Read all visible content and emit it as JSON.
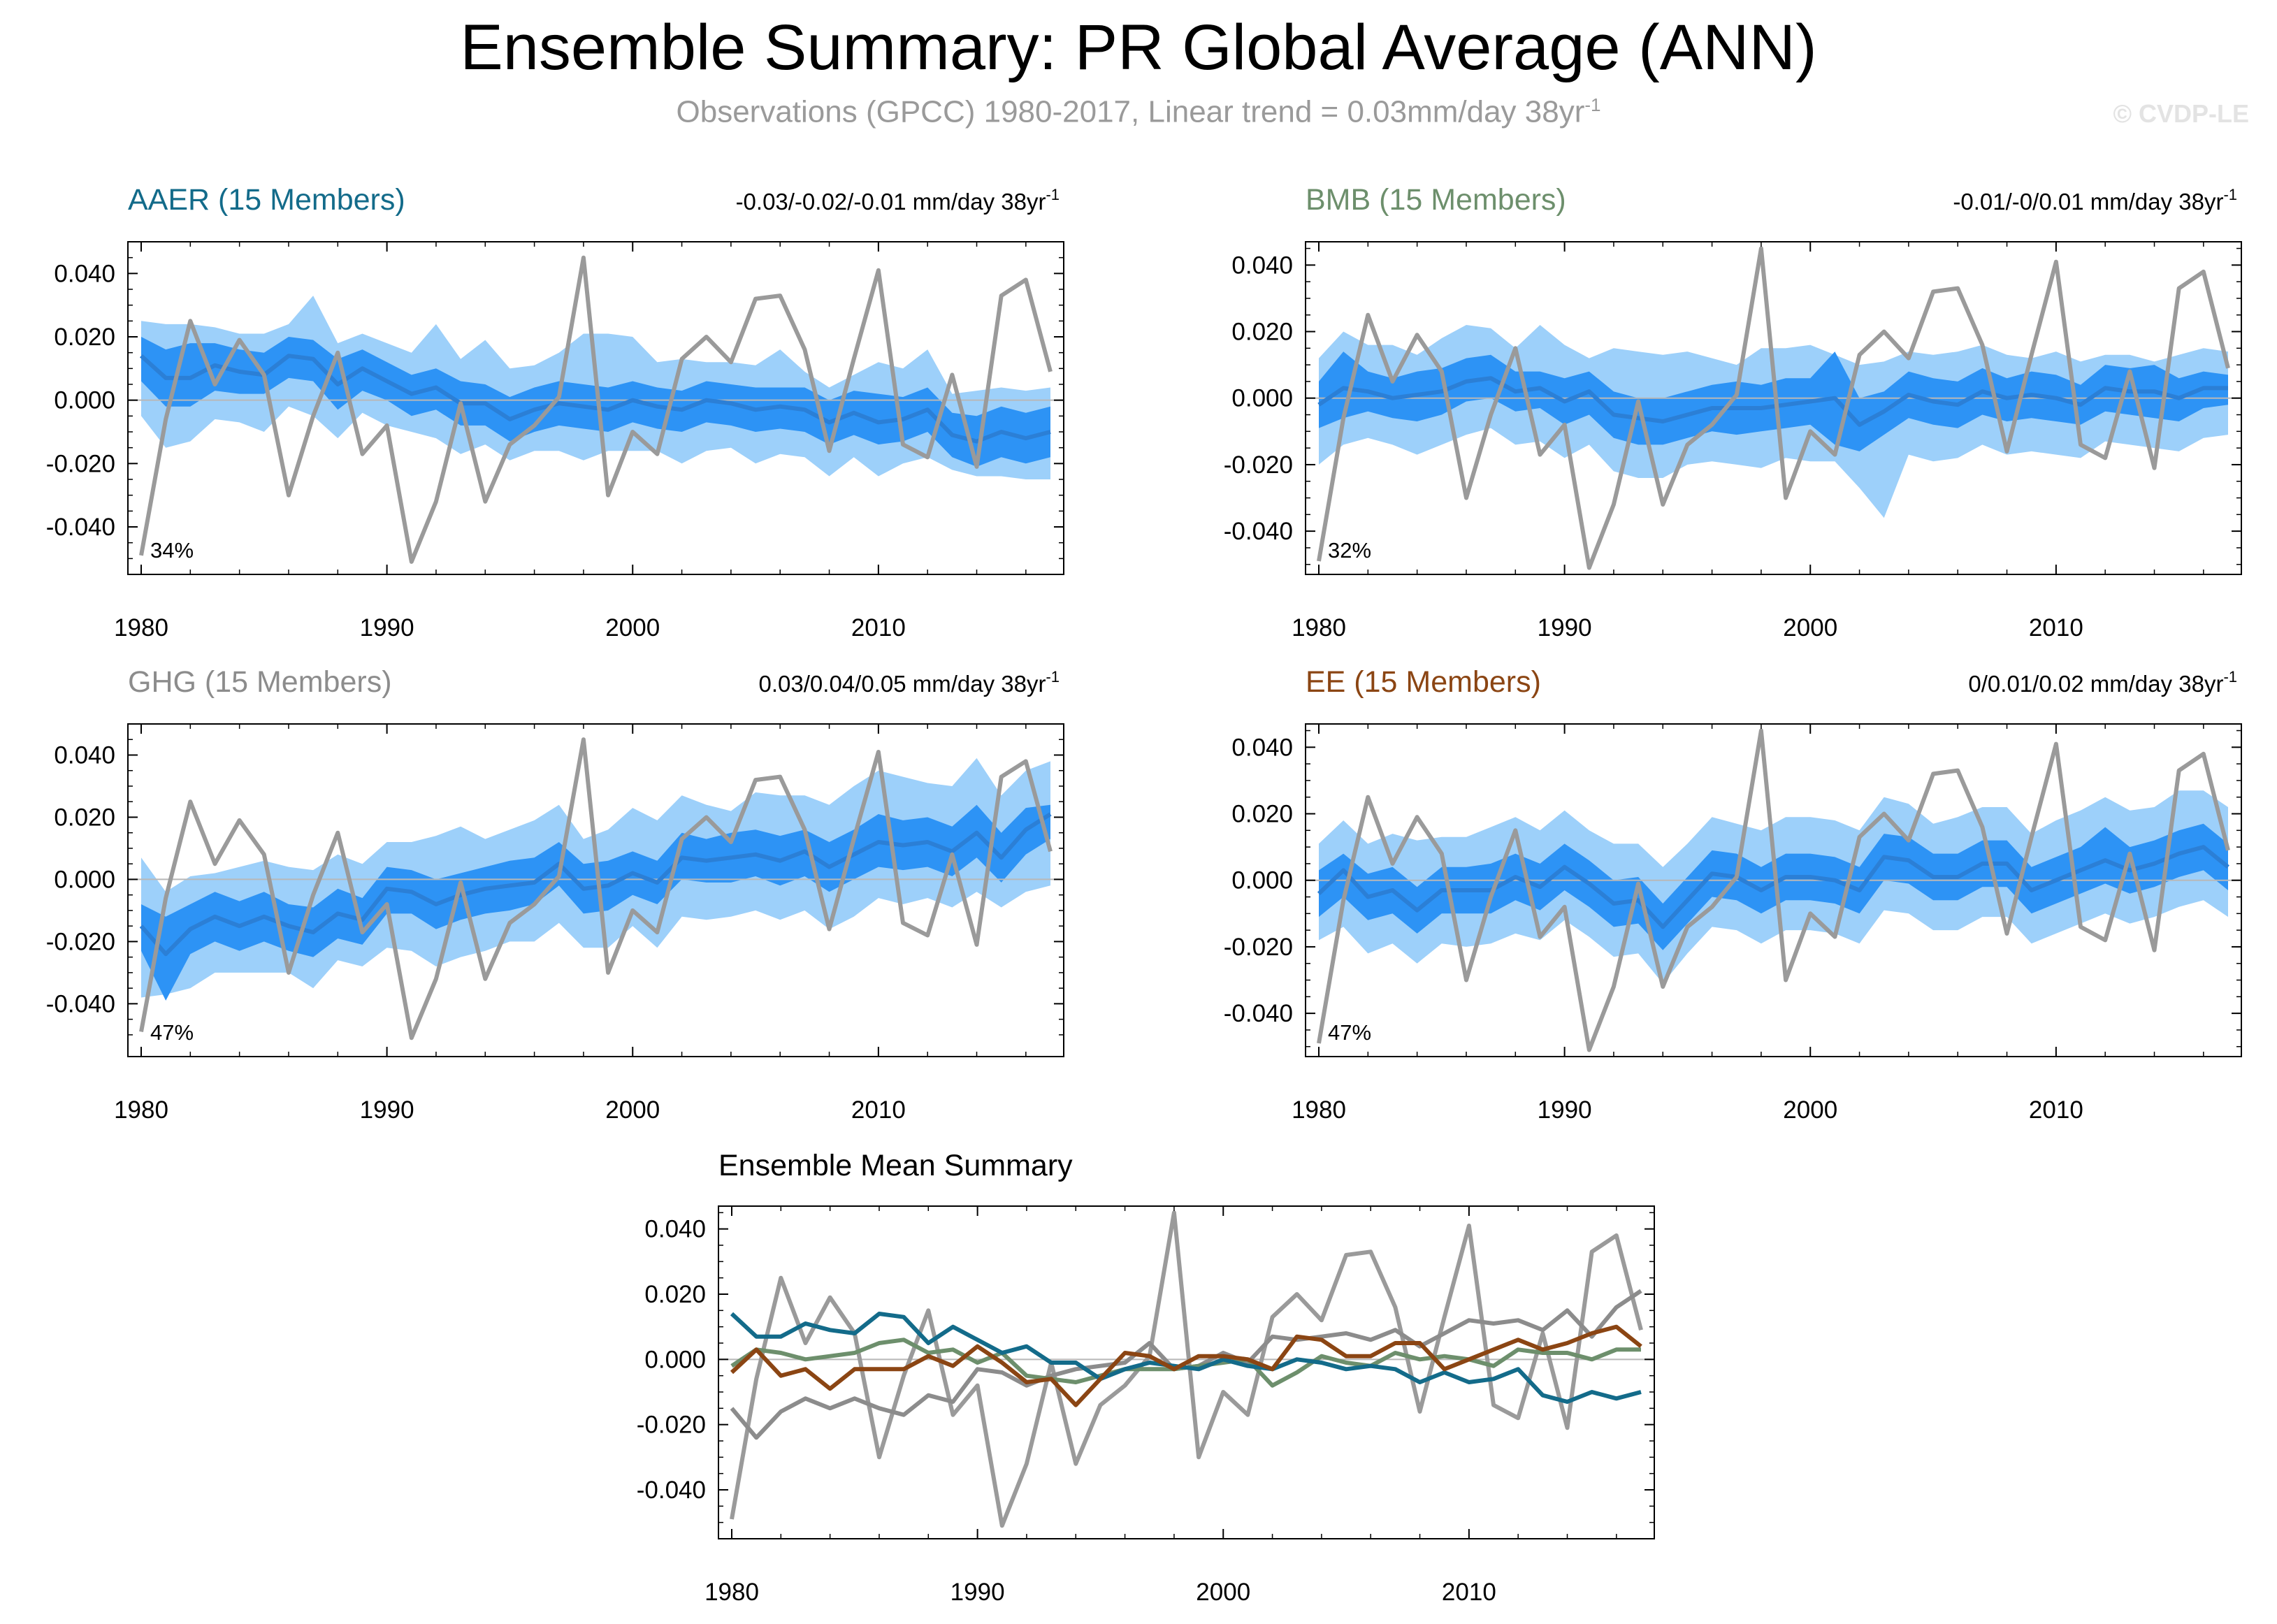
{
  "title": "Ensemble Summary: PR Global Average (ANN)",
  "subtitle": "Observations (GPCC) 1980-2017, Linear trend = 0.03mm/day 38yr",
  "subtitle_exp": "-1",
  "credit": "© CVDP-LE",
  "colors": {
    "aaer": "#136b8a",
    "bmb": "#6d8f6c",
    "ghg": "#8c8c8c",
    "ee": "#8b4513",
    "obs": "#9a9a9a",
    "outer_band": "#9dd0fa",
    "inner_band": "#2d93f5",
    "ens_mean": "#2b7fd6"
  },
  "chart_data": [
    {
      "type": "line",
      "name": "AAER",
      "title": "AAER (15 Members)",
      "title_color": "#136b8a",
      "trend": "-0.03/-0.02/-0.01 mm/day 38yr",
      "trend_exp": "-1",
      "percent": "34%",
      "xlim": [
        1980,
        2017
      ],
      "ylim": [
        -0.055,
        0.05
      ],
      "xticks": [
        "1980",
        "1990",
        "2000",
        "2010"
      ],
      "yticks": [
        "0.040",
        "0.020",
        "0.000",
        "-0.020",
        "-0.040"
      ],
      "x": [
        1980,
        1981,
        1982,
        1983,
        1984,
        1985,
        1986,
        1987,
        1988,
        1989,
        1990,
        1991,
        1992,
        1993,
        1994,
        1995,
        1996,
        1997,
        1998,
        1999,
        2000,
        2001,
        2002,
        2003,
        2004,
        2005,
        2006,
        2007,
        2008,
        2009,
        2010,
        2011,
        2012,
        2013,
        2014,
        2015,
        2016,
        2017
      ],
      "mean": [
        0.014,
        0.007,
        0.007,
        0.011,
        0.009,
        0.008,
        0.014,
        0.013,
        0.005,
        0.01,
        0.006,
        0.002,
        0.004,
        -0.001,
        -0.001,
        -0.006,
        -0.003,
        -0.001,
        -0.002,
        -0.003,
        0.0,
        -0.002,
        -0.003,
        0.0,
        -0.001,
        -0.003,
        -0.002,
        -0.003,
        -0.007,
        -0.004,
        -0.007,
        -0.006,
        -0.003,
        -0.011,
        -0.013,
        -0.01,
        -0.012,
        -0.01
      ],
      "inner_upper": [
        0.02,
        0.016,
        0.018,
        0.018,
        0.016,
        0.015,
        0.02,
        0.019,
        0.013,
        0.016,
        0.012,
        0.008,
        0.01,
        0.006,
        0.005,
        0.001,
        0.004,
        0.006,
        0.005,
        0.004,
        0.006,
        0.004,
        0.003,
        0.006,
        0.005,
        0.004,
        0.004,
        0.004,
        0.0,
        0.003,
        0.002,
        0.001,
        0.004,
        -0.004,
        -0.005,
        -0.002,
        -0.004,
        -0.002
      ],
      "inner_lower": [
        0.006,
        -0.002,
        -0.002,
        0.003,
        0.002,
        0.002,
        0.007,
        0.006,
        -0.003,
        0.003,
        0.0,
        -0.005,
        -0.003,
        -0.008,
        -0.008,
        -0.013,
        -0.01,
        -0.008,
        -0.009,
        -0.01,
        -0.007,
        -0.009,
        -0.01,
        -0.007,
        -0.008,
        -0.01,
        -0.009,
        -0.01,
        -0.014,
        -0.011,
        -0.014,
        -0.013,
        -0.01,
        -0.018,
        -0.021,
        -0.018,
        -0.02,
        -0.018
      ],
      "outer_upper": [
        0.025,
        0.024,
        0.024,
        0.023,
        0.021,
        0.021,
        0.024,
        0.033,
        0.018,
        0.021,
        0.018,
        0.015,
        0.024,
        0.013,
        0.019,
        0.01,
        0.011,
        0.015,
        0.021,
        0.021,
        0.02,
        0.012,
        0.013,
        0.012,
        0.012,
        0.011,
        0.016,
        0.009,
        0.004,
        0.008,
        0.012,
        0.01,
        0.016,
        0.002,
        0.003,
        0.004,
        0.003,
        0.004
      ],
      "outer_lower": [
        -0.005,
        -0.015,
        -0.013,
        -0.006,
        -0.007,
        -0.01,
        -0.002,
        -0.005,
        -0.012,
        -0.004,
        -0.008,
        -0.01,
        -0.012,
        -0.017,
        -0.014,
        -0.019,
        -0.016,
        -0.016,
        -0.019,
        -0.016,
        -0.016,
        -0.016,
        -0.02,
        -0.016,
        -0.015,
        -0.02,
        -0.017,
        -0.018,
        -0.024,
        -0.018,
        -0.024,
        -0.02,
        -0.018,
        -0.022,
        -0.024,
        -0.024,
        -0.025,
        -0.025
      ],
      "obs": [
        -0.049,
        -0.006,
        0.025,
        0.005,
        0.019,
        0.008,
        -0.03,
        -0.005,
        0.015,
        -0.017,
        -0.008,
        -0.051,
        -0.032,
        -0.001,
        -0.032,
        -0.014,
        -0.008,
        0.001,
        0.045,
        -0.03,
        -0.01,
        -0.017,
        0.013,
        0.02,
        0.012,
        0.032,
        0.033,
        0.016,
        -0.016,
        0.013,
        0.041,
        -0.014,
        -0.018,
        0.008,
        -0.021,
        0.033,
        0.038,
        0.009
      ]
    },
    {
      "type": "line",
      "name": "BMB",
      "title": "BMB (15 Members)",
      "title_color": "#6d8f6c",
      "trend": "-0.01/-0/0.01 mm/day 38yr",
      "trend_exp": "-1",
      "percent": "32%",
      "xlim": [
        1980,
        2017
      ],
      "ylim": [
        -0.053,
        0.047
      ],
      "xticks": [
        "1980",
        "1990",
        "2000",
        "2010"
      ],
      "yticks": [
        "0.040",
        "0.020",
        "0.000",
        "-0.020",
        "-0.040"
      ],
      "x": [
        1980,
        1981,
        1982,
        1983,
        1984,
        1985,
        1986,
        1987,
        1988,
        1989,
        1990,
        1991,
        1992,
        1993,
        1994,
        1995,
        1996,
        1997,
        1998,
        1999,
        2000,
        2001,
        2002,
        2003,
        2004,
        2005,
        2006,
        2007,
        2008,
        2009,
        2010,
        2011,
        2012,
        2013,
        2014,
        2015,
        2016,
        2017
      ],
      "mean": [
        -0.002,
        0.003,
        0.002,
        0.0,
        0.001,
        0.002,
        0.005,
        0.006,
        0.002,
        0.003,
        -0.001,
        0.002,
        -0.005,
        -0.006,
        -0.007,
        -0.005,
        -0.003,
        -0.003,
        -0.003,
        -0.002,
        -0.001,
        0.0,
        -0.008,
        -0.004,
        0.001,
        -0.001,
        -0.002,
        0.002,
        0.0,
        0.001,
        0.0,
        -0.002,
        0.003,
        0.002,
        0.002,
        0.0,
        0.003,
        0.003
      ],
      "inner_upper": [
        0.005,
        0.014,
        0.008,
        0.006,
        0.008,
        0.009,
        0.012,
        0.013,
        0.008,
        0.008,
        0.006,
        0.008,
        0.002,
        0.0,
        0.0,
        0.002,
        0.004,
        0.005,
        0.004,
        0.006,
        0.006,
        0.014,
        0.0,
        0.002,
        0.008,
        0.006,
        0.005,
        0.009,
        0.006,
        0.008,
        0.007,
        0.004,
        0.01,
        0.009,
        0.01,
        0.006,
        0.008,
        0.007
      ],
      "inner_lower": [
        -0.009,
        -0.006,
        -0.004,
        -0.006,
        -0.007,
        -0.005,
        -0.001,
        0.0,
        -0.004,
        -0.003,
        -0.008,
        -0.005,
        -0.012,
        -0.014,
        -0.014,
        -0.012,
        -0.01,
        -0.011,
        -0.01,
        -0.009,
        -0.008,
        -0.014,
        -0.016,
        -0.011,
        -0.006,
        -0.008,
        -0.009,
        -0.005,
        -0.007,
        -0.006,
        -0.007,
        -0.008,
        -0.004,
        -0.005,
        -0.006,
        -0.007,
        -0.003,
        -0.002
      ],
      "outer_upper": [
        0.012,
        0.02,
        0.016,
        0.016,
        0.013,
        0.018,
        0.022,
        0.021,
        0.015,
        0.022,
        0.016,
        0.012,
        0.015,
        0.014,
        0.013,
        0.014,
        0.012,
        0.01,
        0.015,
        0.015,
        0.016,
        0.013,
        0.01,
        0.011,
        0.014,
        0.013,
        0.014,
        0.016,
        0.013,
        0.012,
        0.014,
        0.011,
        0.013,
        0.013,
        0.011,
        0.013,
        0.015,
        0.014
      ],
      "outer_lower": [
        -0.02,
        -0.014,
        -0.012,
        -0.014,
        -0.017,
        -0.014,
        -0.011,
        -0.009,
        -0.014,
        -0.013,
        -0.018,
        -0.014,
        -0.022,
        -0.024,
        -0.024,
        -0.02,
        -0.019,
        -0.02,
        -0.021,
        -0.018,
        -0.019,
        -0.019,
        -0.027,
        -0.036,
        -0.017,
        -0.019,
        -0.018,
        -0.014,
        -0.017,
        -0.016,
        -0.017,
        -0.018,
        -0.013,
        -0.014,
        -0.015,
        -0.016,
        -0.012,
        -0.011
      ],
      "obs": [
        -0.049,
        -0.006,
        0.025,
        0.005,
        0.019,
        0.008,
        -0.03,
        -0.005,
        0.015,
        -0.017,
        -0.008,
        -0.051,
        -0.032,
        -0.001,
        -0.032,
        -0.014,
        -0.008,
        0.001,
        0.045,
        -0.03,
        -0.01,
        -0.017,
        0.013,
        0.02,
        0.012,
        0.032,
        0.033,
        0.016,
        -0.016,
        0.013,
        0.041,
        -0.014,
        -0.018,
        0.008,
        -0.021,
        0.033,
        0.038,
        0.009
      ]
    },
    {
      "type": "line",
      "name": "GHG",
      "title": "GHG (15 Members)",
      "title_color": "#8c8c8c",
      "trend": "0.03/0.04/0.05 mm/day 38yr",
      "trend_exp": "-1",
      "percent": "47%",
      "xlim": [
        1980,
        2017
      ],
      "ylim": [
        -0.057,
        0.05
      ],
      "xticks": [
        "1980",
        "1990",
        "2000",
        "2010"
      ],
      "yticks": [
        "0.040",
        "0.020",
        "0.000",
        "-0.020",
        "-0.040"
      ],
      "x": [
        1980,
        1981,
        1982,
        1983,
        1984,
        1985,
        1986,
        1987,
        1988,
        1989,
        1990,
        1991,
        1992,
        1993,
        1994,
        1995,
        1996,
        1997,
        1998,
        1999,
        2000,
        2001,
        2002,
        2003,
        2004,
        2005,
        2006,
        2007,
        2008,
        2009,
        2010,
        2011,
        2012,
        2013,
        2014,
        2015,
        2016,
        2017
      ],
      "mean": [
        -0.015,
        -0.024,
        -0.016,
        -0.012,
        -0.015,
        -0.012,
        -0.015,
        -0.017,
        -0.011,
        -0.013,
        -0.003,
        -0.004,
        -0.008,
        -0.005,
        -0.003,
        -0.002,
        -0.001,
        0.005,
        -0.003,
        -0.002,
        0.002,
        -0.001,
        0.007,
        0.006,
        0.007,
        0.008,
        0.006,
        0.009,
        0.004,
        0.008,
        0.012,
        0.011,
        0.012,
        0.009,
        0.015,
        0.007,
        0.016,
        0.021
      ],
      "inner_upper": [
        -0.008,
        -0.012,
        -0.008,
        -0.004,
        -0.007,
        -0.004,
        -0.008,
        -0.009,
        -0.003,
        -0.006,
        0.004,
        0.003,
        0.0,
        0.002,
        0.004,
        0.006,
        0.007,
        0.012,
        0.005,
        0.006,
        0.009,
        0.006,
        0.015,
        0.013,
        0.015,
        0.016,
        0.014,
        0.016,
        0.012,
        0.016,
        0.021,
        0.019,
        0.02,
        0.017,
        0.024,
        0.015,
        0.023,
        0.024
      ],
      "inner_lower": [
        -0.023,
        -0.039,
        -0.024,
        -0.02,
        -0.023,
        -0.02,
        -0.023,
        -0.025,
        -0.019,
        -0.021,
        -0.011,
        -0.011,
        -0.016,
        -0.013,
        -0.011,
        -0.01,
        -0.008,
        -0.002,
        -0.011,
        -0.01,
        -0.005,
        -0.008,
        0.0,
        -0.001,
        -0.001,
        0.001,
        -0.002,
        0.001,
        -0.004,
        0.0,
        0.004,
        0.003,
        0.004,
        0.001,
        0.007,
        -0.001,
        0.008,
        0.013
      ],
      "outer_upper": [
        0.007,
        -0.004,
        0.001,
        0.002,
        0.004,
        0.006,
        0.004,
        0.003,
        0.008,
        0.005,
        0.012,
        0.012,
        0.014,
        0.017,
        0.013,
        0.016,
        0.019,
        0.024,
        0.013,
        0.016,
        0.023,
        0.019,
        0.027,
        0.024,
        0.022,
        0.028,
        0.027,
        0.027,
        0.024,
        0.03,
        0.035,
        0.033,
        0.031,
        0.03,
        0.039,
        0.027,
        0.035,
        0.038
      ],
      "outer_lower": [
        -0.038,
        -0.037,
        -0.035,
        -0.03,
        -0.03,
        -0.03,
        -0.03,
        -0.035,
        -0.026,
        -0.028,
        -0.022,
        -0.023,
        -0.028,
        -0.025,
        -0.023,
        -0.02,
        -0.02,
        -0.014,
        -0.022,
        -0.022,
        -0.015,
        -0.022,
        -0.012,
        -0.013,
        -0.012,
        -0.01,
        -0.013,
        -0.01,
        -0.016,
        -0.012,
        -0.006,
        -0.008,
        -0.006,
        -0.009,
        -0.004,
        -0.009,
        -0.004,
        -0.002
      ],
      "obs": [
        -0.049,
        -0.006,
        0.025,
        0.005,
        0.019,
        0.008,
        -0.03,
        -0.005,
        0.015,
        -0.017,
        -0.008,
        -0.051,
        -0.032,
        -0.001,
        -0.032,
        -0.014,
        -0.008,
        0.001,
        0.045,
        -0.03,
        -0.01,
        -0.017,
        0.013,
        0.02,
        0.012,
        0.032,
        0.033,
        0.016,
        -0.016,
        0.013,
        0.041,
        -0.014,
        -0.018,
        0.008,
        -0.021,
        0.033,
        0.038,
        0.009
      ]
    },
    {
      "type": "line",
      "name": "EE",
      "title": "EE (15 Members)",
      "title_color": "#8b4513",
      "trend": "0/0.01/0.02 mm/day 38yr",
      "trend_exp": "-1",
      "percent": "47%",
      "xlim": [
        1980,
        2017
      ],
      "ylim": [
        -0.053,
        0.047
      ],
      "xticks": [
        "1980",
        "1990",
        "2000",
        "2010"
      ],
      "yticks": [
        "0.040",
        "0.020",
        "0.000",
        "-0.020",
        "-0.040"
      ],
      "x": [
        1980,
        1981,
        1982,
        1983,
        1984,
        1985,
        1986,
        1987,
        1988,
        1989,
        1990,
        1991,
        1992,
        1993,
        1994,
        1995,
        1996,
        1997,
        1998,
        1999,
        2000,
        2001,
        2002,
        2003,
        2004,
        2005,
        2006,
        2007,
        2008,
        2009,
        2010,
        2011,
        2012,
        2013,
        2014,
        2015,
        2016,
        2017
      ],
      "mean": [
        -0.004,
        0.003,
        -0.005,
        -0.003,
        -0.009,
        -0.003,
        -0.003,
        -0.003,
        0.001,
        -0.002,
        0.004,
        -0.001,
        -0.007,
        -0.006,
        -0.014,
        -0.006,
        0.002,
        0.001,
        -0.003,
        0.001,
        0.001,
        0.0,
        -0.003,
        0.007,
        0.006,
        0.001,
        0.001,
        0.005,
        0.005,
        -0.003,
        0.0,
        0.003,
        0.006,
        0.003,
        0.005,
        0.008,
        0.01,
        0.004
      ],
      "inner_upper": [
        0.003,
        0.008,
        0.002,
        0.004,
        -0.002,
        0.004,
        0.004,
        0.005,
        0.008,
        0.005,
        0.011,
        0.006,
        0.0,
        0.001,
        -0.007,
        0.001,
        0.009,
        0.008,
        0.004,
        0.008,
        0.008,
        0.007,
        0.004,
        0.014,
        0.013,
        0.008,
        0.008,
        0.012,
        0.012,
        0.004,
        0.007,
        0.01,
        0.016,
        0.01,
        0.012,
        0.015,
        0.017,
        0.011
      ],
      "inner_lower": [
        -0.011,
        -0.005,
        -0.012,
        -0.01,
        -0.016,
        -0.01,
        -0.01,
        -0.01,
        -0.006,
        -0.009,
        -0.003,
        -0.008,
        -0.014,
        -0.013,
        -0.021,
        -0.013,
        -0.005,
        -0.006,
        -0.01,
        -0.006,
        -0.006,
        -0.007,
        -0.01,
        0.0,
        -0.001,
        -0.006,
        -0.006,
        -0.002,
        -0.002,
        -0.01,
        -0.007,
        -0.004,
        -0.001,
        -0.004,
        -0.002,
        0.001,
        0.003,
        -0.003
      ],
      "outer_upper": [
        0.011,
        0.018,
        0.011,
        0.014,
        0.012,
        0.013,
        0.013,
        0.016,
        0.019,
        0.015,
        0.021,
        0.015,
        0.011,
        0.011,
        0.004,
        0.011,
        0.019,
        0.017,
        0.015,
        0.019,
        0.019,
        0.018,
        0.015,
        0.025,
        0.023,
        0.017,
        0.019,
        0.022,
        0.022,
        0.014,
        0.018,
        0.021,
        0.025,
        0.021,
        0.022,
        0.027,
        0.027,
        0.022
      ],
      "outer_lower": [
        -0.018,
        -0.014,
        -0.022,
        -0.019,
        -0.025,
        -0.019,
        -0.02,
        -0.019,
        -0.016,
        -0.018,
        -0.012,
        -0.017,
        -0.023,
        -0.022,
        -0.031,
        -0.022,
        -0.014,
        -0.015,
        -0.019,
        -0.015,
        -0.015,
        -0.016,
        -0.019,
        -0.009,
        -0.01,
        -0.015,
        -0.015,
        -0.011,
        -0.011,
        -0.019,
        -0.016,
        -0.013,
        -0.01,
        -0.013,
        -0.011,
        -0.008,
        -0.006,
        -0.011
      ],
      "obs": [
        -0.049,
        -0.006,
        0.025,
        0.005,
        0.019,
        0.008,
        -0.03,
        -0.005,
        0.015,
        -0.017,
        -0.008,
        -0.051,
        -0.032,
        -0.001,
        -0.032,
        -0.014,
        -0.008,
        0.001,
        0.045,
        -0.03,
        -0.01,
        -0.017,
        0.013,
        0.02,
        0.012,
        0.032,
        0.033,
        0.016,
        -0.016,
        0.013,
        0.041,
        -0.014,
        -0.018,
        0.008,
        -0.021,
        0.033,
        0.038,
        0.009
      ]
    },
    {
      "type": "line",
      "name": "Ensemble Mean Summary",
      "title": "Ensemble Mean Summary",
      "xlim": [
        1980,
        2017
      ],
      "ylim": [
        -0.055,
        0.047
      ],
      "xticks": [
        "1980",
        "1990",
        "2000",
        "2010"
      ],
      "yticks": [
        "0.040",
        "0.020",
        "0.000",
        "-0.020",
        "-0.040"
      ],
      "series_ref": [
        "AAER",
        "BMB",
        "GHG",
        "EE"
      ],
      "obs_ref": "AAER"
    }
  ]
}
